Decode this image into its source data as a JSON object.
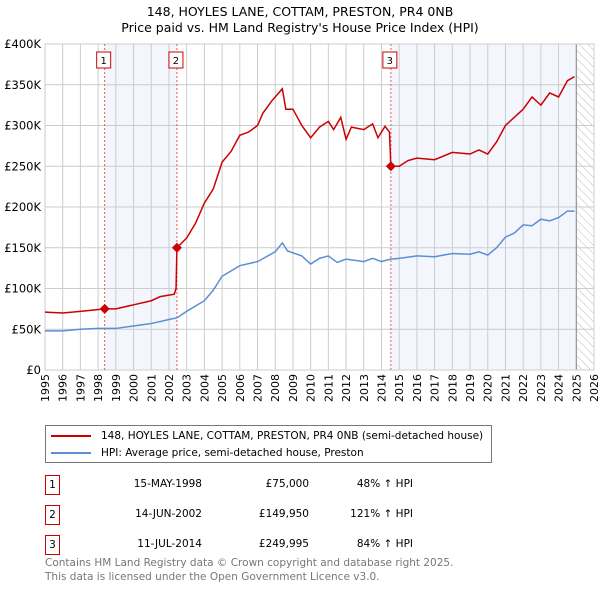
{
  "header": {
    "title": "148, HOYLES LANE, COTTAM, PRESTON, PR4 0NB",
    "subtitle": "Price paid vs. HM Land Registry's House Price Index (HPI)"
  },
  "chart_data": {
    "type": "line",
    "title": "148, HOYLES LANE, COTTAM, PRESTON, PR4 0NB",
    "subtitle": "Price paid vs. HM Land Registry's House Price Index (HPI)",
    "xlim": [
      1995,
      2026
    ],
    "ylim": [
      0,
      400000
    ],
    "x_ticks": [
      "1995",
      "1996",
      "1997",
      "1998",
      "1999",
      "2000",
      "2001",
      "2002",
      "2003",
      "2004",
      "2005",
      "2006",
      "2007",
      "2008",
      "2009",
      "2010",
      "2011",
      "2012",
      "2013",
      "2014",
      "2015",
      "2016",
      "2017",
      "2018",
      "2019",
      "2020",
      "2021",
      "2022",
      "2023",
      "2024",
      "2025",
      "2026"
    ],
    "y_ticks": [
      {
        "v": 0,
        "label": "£0"
      },
      {
        "v": 50000,
        "label": "£50K"
      },
      {
        "v": 100000,
        "label": "£100K"
      },
      {
        "v": 150000,
        "label": "£150K"
      },
      {
        "v": 200000,
        "label": "£200K"
      },
      {
        "v": 250000,
        "label": "£250K"
      },
      {
        "v": 300000,
        "label": "£300K"
      },
      {
        "v": 350000,
        "label": "£350K"
      },
      {
        "v": 400000,
        "label": "£400K"
      }
    ],
    "grid": true,
    "forecast_hatch_from": 2025.0,
    "series": [
      {
        "name": "148, HOYLES LANE, COTTAM, PRESTON, PR4 0NB (semi-detached house)",
        "color": "#cc0000",
        "x": [
          1995,
          1996,
          1997,
          1998.37,
          1999,
          2000,
          2001,
          2001.5,
          2002.3,
          2002.4,
          2002.45,
          2003,
          2003.5,
          2004,
          2004.5,
          2005,
          2005.5,
          2006,
          2006.5,
          2007,
          2007.3,
          2007.8,
          2008.2,
          2008.4,
          2008.6,
          2009,
          2009.5,
          2010,
          2010.5,
          2011,
          2011.3,
          2011.7,
          2012,
          2012.3,
          2013,
          2013.5,
          2013.8,
          2014.2,
          2014.45,
          2014.53,
          2015,
          2015.5,
          2016,
          2017,
          2018,
          2019,
          2019.5,
          2020,
          2020.5,
          2021,
          2021.5,
          2022,
          2022.5,
          2023,
          2023.5,
          2024,
          2024.5,
          2024.9
        ],
        "y": [
          71000,
          70000,
          72000,
          75000,
          75000,
          80000,
          85000,
          90000,
          93000,
          100000,
          149950,
          162000,
          180000,
          205000,
          222000,
          255000,
          268000,
          288000,
          292000,
          300000,
          315000,
          330000,
          340000,
          345000,
          320000,
          320000,
          300000,
          285000,
          298000,
          305000,
          295000,
          310000,
          283000,
          298000,
          295000,
          302000,
          285000,
          299000,
          292000,
          249995,
          250000,
          257000,
          260000,
          258000,
          267000,
          265000,
          270000,
          265000,
          280000,
          300000,
          310000,
          320000,
          335000,
          325000,
          340000,
          335000,
          355000,
          360000
        ]
      },
      {
        "name": "HPI: Average price, semi-detached house, Preston",
        "color": "#5b8fd4",
        "x": [
          1995,
          1996,
          1997,
          1998,
          1999,
          2000,
          2001,
          2002,
          2002.45,
          2003,
          2004,
          2004.5,
          2005,
          2006,
          2007,
          2008,
          2008.4,
          2008.7,
          2009.5,
          2010,
          2010.5,
          2011,
          2011.5,
          2012,
          2013,
          2013.5,
          2014,
          2014.5,
          2015,
          2016,
          2017,
          2018,
          2019,
          2019.5,
          2020,
          2020.5,
          2021,
          2021.5,
          2022,
          2022.5,
          2023,
          2023.5,
          2024,
          2024.5,
          2024.9
        ],
        "y": [
          48000,
          48000,
          50000,
          51000,
          51000,
          54000,
          57000,
          62000,
          64000,
          72000,
          85000,
          98000,
          115000,
          128000,
          133000,
          145000,
          156000,
          146000,
          140000,
          130000,
          137000,
          140000,
          132000,
          136000,
          133000,
          137000,
          133000,
          136000,
          137000,
          140000,
          139000,
          143000,
          142000,
          145000,
          141000,
          150000,
          163000,
          168000,
          178000,
          177000,
          185000,
          183000,
          187000,
          195000,
          195000
        ]
      }
    ],
    "sales": [
      {
        "n": "1",
        "x": 1998.37,
        "y": 75000,
        "date": "15-MAY-1998",
        "price": "£75,000",
        "pct": "48% ↑ HPI"
      },
      {
        "n": "2",
        "x": 2002.45,
        "y": 149950,
        "date": "14-JUN-2002",
        "price": "£149,950",
        "pct": "121% ↑ HPI"
      },
      {
        "n": "3",
        "x": 2014.53,
        "y": 249995,
        "date": "11-JUL-2014",
        "price": "£249,995",
        "pct": "84% ↑ HPI"
      }
    ],
    "shaded_spans": [
      [
        1998.37,
        2002.45
      ],
      [
        2014.53,
        2025.0
      ]
    ]
  },
  "legend": {
    "items": [
      "148, HOYLES LANE, COTTAM, PRESTON, PR4 0NB (semi-detached house)",
      "HPI: Average price, semi-detached house, Preston"
    ]
  },
  "footer": {
    "line1": "Contains HM Land Registry data © Crown copyright and database right 2025.",
    "line2": "This data is licensed under the Open Government Licence v3.0."
  }
}
